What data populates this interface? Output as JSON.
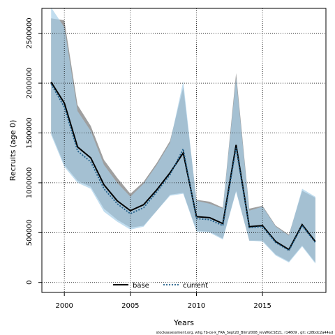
{
  "chart_data": {
    "type": "line",
    "xlabel": "Years",
    "ylabel": "Recruits (age 0)",
    "xlim": [
      1998.3,
      2019.8
    ],
    "ylim": [
      -100000,
      2750000
    ],
    "x_ticks": [
      2000,
      2005,
      2010,
      2015
    ],
    "y_ticks": [
      0,
      500000,
      1000000,
      1500000,
      2000000,
      2500000
    ],
    "x_tick_labels": [
      "2000",
      "2005",
      "2010",
      "2015"
    ],
    "y_tick_labels": [
      "0",
      "500000",
      "1000000",
      "1500000",
      "2000000",
      "2500000"
    ],
    "grid": true,
    "legend_position": "bottom-center",
    "x": [
      1999,
      2000,
      2001,
      2002,
      2003,
      2004,
      2005,
      2006,
      2007,
      2008,
      2009,
      2010,
      2011,
      2012,
      2013,
      2014,
      2015,
      2016,
      2017,
      2018,
      2019
    ],
    "series": [
      {
        "name": "base",
        "color": "#000000",
        "band_color": "#7f7f7f",
        "values": [
          2010000,
          1800000,
          1360000,
          1250000,
          980000,
          820000,
          720000,
          780000,
          930000,
          1100000,
          1300000,
          660000,
          650000,
          590000,
          1380000,
          560000,
          570000,
          410000,
          330000,
          580000,
          410000
        ],
        "lower": [
          1500000,
          1180000,
          1020000,
          960000,
          740000,
          630000,
          550000,
          570000,
          720000,
          880000,
          900000,
          520000,
          510000,
          440000,
          920000,
          420000,
          420000,
          280000,
          210000,
          370000,
          200000
        ],
        "upper": [
          2650000,
          2630000,
          1780000,
          1570000,
          1230000,
          1050000,
          890000,
          1010000,
          1200000,
          1420000,
          1960000,
          830000,
          810000,
          750000,
          2100000,
          740000,
          770000,
          570000,
          480000,
          920000,
          850000
        ]
      },
      {
        "name": "current",
        "color": "#1f5e8a",
        "band_color": "#a6cfe8",
        "values": [
          1990000,
          1760000,
          1320000,
          1210000,
          940000,
          790000,
          690000,
          750000,
          910000,
          1080000,
          1340000,
          640000,
          630000,
          570000,
          1350000,
          550000,
          560000,
          400000,
          320000,
          570000,
          400000
        ],
        "lower": [
          1480000,
          1160000,
          1000000,
          940000,
          710000,
          610000,
          530000,
          560000,
          720000,
          870000,
          890000,
          510000,
          500000,
          430000,
          910000,
          420000,
          410000,
          270000,
          200000,
          360000,
          190000
        ],
        "upper": [
          2760000,
          2560000,
          1720000,
          1520000,
          1180000,
          1000000,
          860000,
          990000,
          1180000,
          1400000,
          2020000,
          820000,
          790000,
          740000,
          2050000,
          720000,
          760000,
          560000,
          470000,
          940000,
          860000
        ]
      }
    ]
  },
  "footer": {
    "text": "stockassessment.org, whg.7b-ce-k_FRA_Sept20_Blim2008_revWGCSE21, r14609 , git: c28bdc2a44ad"
  }
}
